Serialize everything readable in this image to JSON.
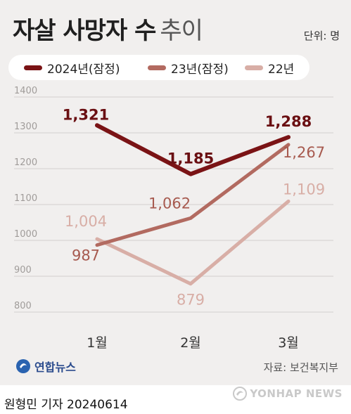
{
  "title": "자살 사망자 수",
  "title_suffix": "추이",
  "unit": "단위: 명",
  "source": "자료: 보건복지부",
  "agency": "연합뉴스",
  "byline": "원형민 기자  20240614",
  "watermark": "YONHAP NEWS",
  "colors": {
    "s2024": "#7a1315",
    "s2023": "#b26a60",
    "s2022": "#d8aea6",
    "grid": "#d2cfcd",
    "tick": "#a09c9a"
  },
  "chart_data": {
    "type": "line",
    "categories": [
      "1월",
      "2월",
      "3월"
    ],
    "ylim": [
      800,
      1400
    ],
    "yticks": [
      800,
      900,
      1000,
      1100,
      1200,
      1300,
      1400
    ],
    "grid": true,
    "legend_position": "top",
    "series": [
      {
        "name": "2024년(잠정)",
        "values": [
          1321,
          1185,
          1288
        ],
        "labels": [
          "1,321",
          "1,185",
          "1,288"
        ]
      },
      {
        "name": "23년(잠정)",
        "values": [
          987,
          1062,
          1267
        ],
        "labels": [
          "987",
          "1,062",
          "1,267"
        ]
      },
      {
        "name": "22년",
        "values": [
          1004,
          879,
          1109
        ],
        "labels": [
          "1,004",
          "879",
          "1,109"
        ]
      }
    ]
  }
}
